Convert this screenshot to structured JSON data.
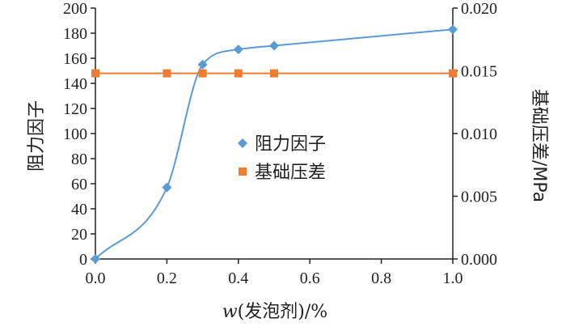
{
  "chart_data": {
    "type": "line",
    "x": [
      0.0,
      0.2,
      0.3,
      0.4,
      0.5,
      1.0
    ],
    "series": [
      {
        "name": "阻力因子",
        "axis": "left",
        "marker": "diamond",
        "smooth": true,
        "color": "#5b9bd5",
        "values": [
          0,
          57,
          155,
          167,
          170,
          183
        ]
      },
      {
        "name": "基础压差",
        "axis": "right",
        "marker": "square",
        "smooth": false,
        "color": "#ed7d31",
        "values": [
          0.0148,
          0.0148,
          0.0148,
          0.0148,
          0.0148,
          0.0148
        ]
      }
    ],
    "xlabel": {
      "italic": "w",
      "rest": "(发泡剂)/%"
    },
    "ylabel_left": "阻力因子",
    "ylabel_right": "基础压差/MPa",
    "xlim": [
      0.0,
      1.0
    ],
    "xticks": [
      "0.0",
      "0.2",
      "0.4",
      "0.6",
      "0.8",
      "1.0"
    ],
    "ylim_left": [
      0,
      200
    ],
    "yticks_left": [
      "0",
      "20",
      "40",
      "60",
      "80",
      "100",
      "120",
      "140",
      "160",
      "180",
      "200"
    ],
    "ylim_right": [
      0.0,
      0.02
    ],
    "yticks_right": [
      "0.000",
      "0.005",
      "0.010",
      "0.015",
      "0.020"
    ],
    "legend_position": "center",
    "grid": false
  }
}
